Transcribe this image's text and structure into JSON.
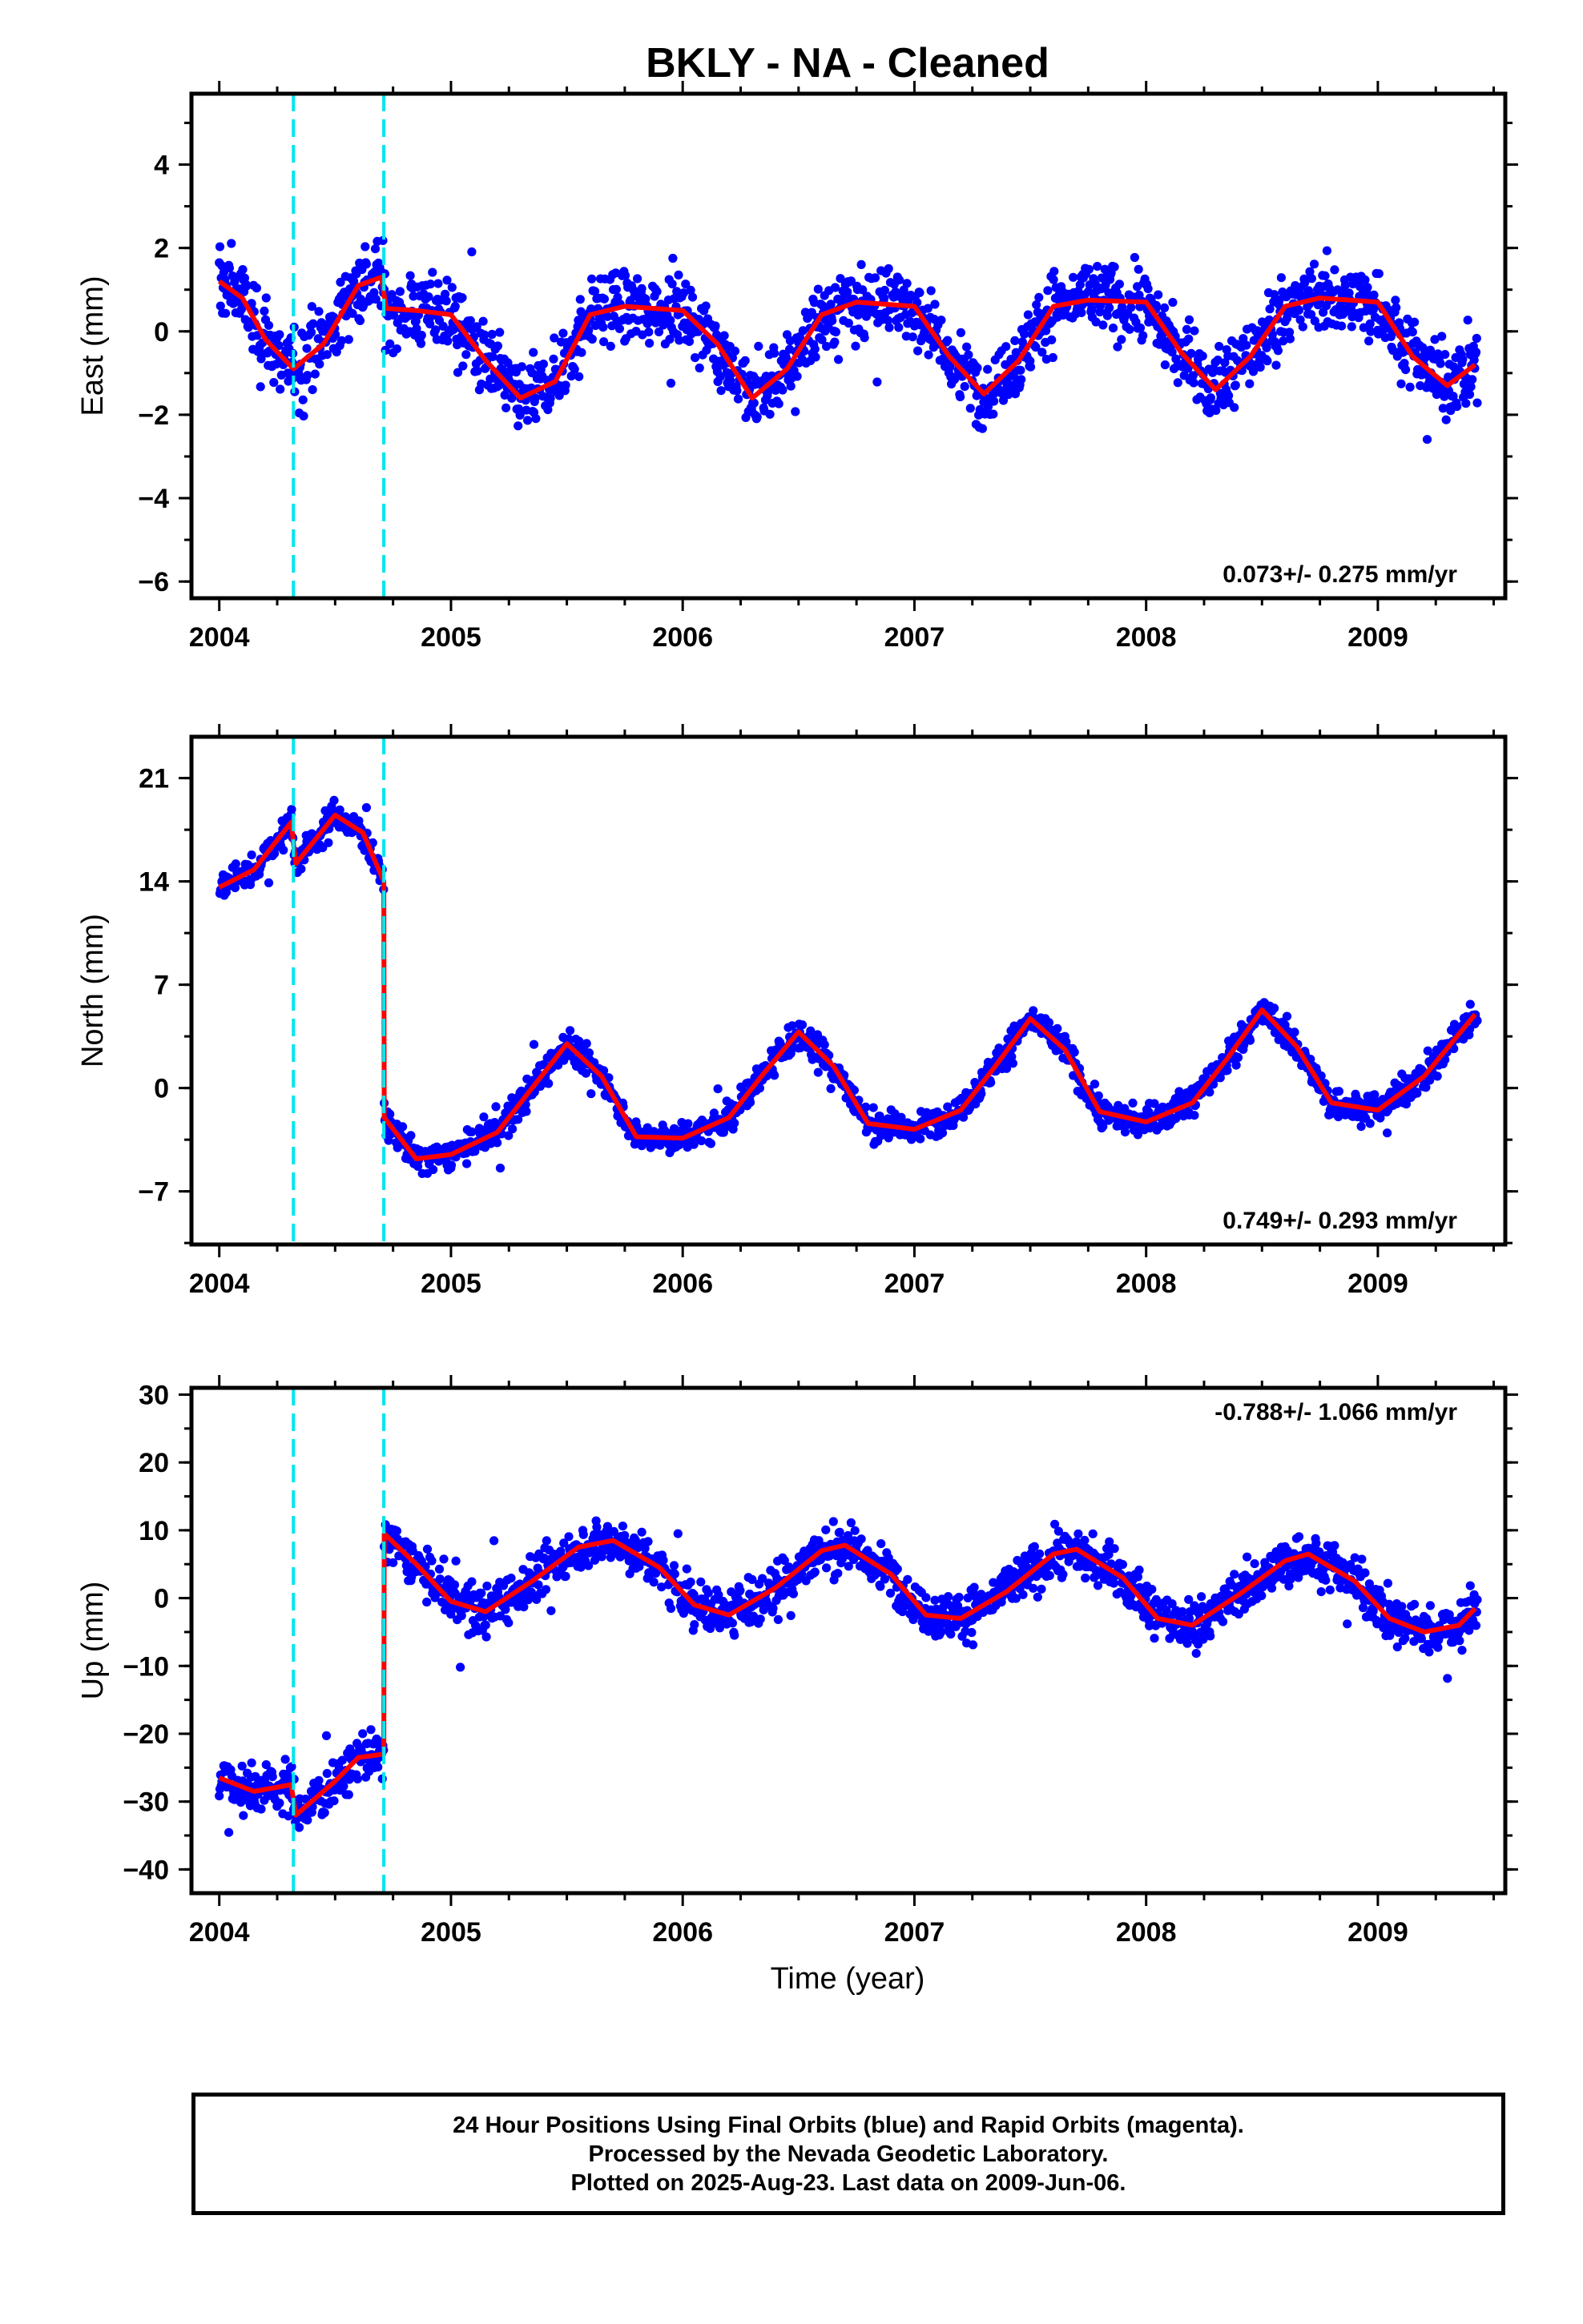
{
  "title": "BKLY  - NA - Cleaned",
  "footer": {
    "line1": "24 Hour Positions Using Final Orbits (blue) and Rapid Orbits (magenta).",
    "line2": "Processed by the Nevada Geodetic Laboratory.",
    "line3": "Plotted on 2025-Aug-23. Last data on 2009-Jun-06."
  },
  "colors": {
    "points": "#0000ff",
    "fit": "#ff0000",
    "steps": "#00e5ee",
    "frame": "#000000"
  },
  "xlabel": "Time (year)",
  "chart_data": [
    {
      "type": "scatter",
      "name": "east",
      "ylabel": "East (mm)",
      "rate_text": "0.073+/- 0.275 mm/yr",
      "xlim": [
        2003.88,
        2009.55
      ],
      "ylim": [
        -6.4,
        5.7
      ],
      "xticks": [
        2004,
        2005,
        2006,
        2007,
        2008,
        2009
      ],
      "yticks": [
        -6,
        -4,
        -2,
        0,
        2,
        4
      ],
      "step_lines_x": [
        2004.32,
        2004.71
      ],
      "fit_line": [
        [
          2004.0,
          1.2
        ],
        [
          2004.1,
          0.8
        ],
        [
          2004.2,
          -0.2
        ],
        [
          2004.32,
          -0.9
        ],
        [
          2004.45,
          -0.3
        ],
        [
          2004.6,
          1.1
        ],
        [
          2004.7,
          1.3
        ],
        [
          2004.72,
          0.55
        ],
        [
          2004.85,
          0.5
        ],
        [
          2005.0,
          0.4
        ],
        [
          2005.15,
          -0.7
        ],
        [
          2005.3,
          -1.6
        ],
        [
          2005.45,
          -1.2
        ],
        [
          2005.6,
          0.4
        ],
        [
          2005.75,
          0.6
        ],
        [
          2006.0,
          0.5
        ],
        [
          2006.15,
          -0.3
        ],
        [
          2006.3,
          -1.6
        ],
        [
          2006.45,
          -0.9
        ],
        [
          2006.6,
          0.4
        ],
        [
          2006.75,
          0.7
        ],
        [
          2007.0,
          0.6
        ],
        [
          2007.15,
          -0.6
        ],
        [
          2007.3,
          -1.5
        ],
        [
          2007.45,
          -0.7
        ],
        [
          2007.6,
          0.6
        ],
        [
          2007.75,
          0.75
        ],
        [
          2008.0,
          0.7
        ],
        [
          2008.15,
          -0.5
        ],
        [
          2008.3,
          -1.4
        ],
        [
          2008.45,
          -0.6
        ],
        [
          2008.6,
          0.6
        ],
        [
          2008.75,
          0.8
        ],
        [
          2009.0,
          0.7
        ],
        [
          2009.15,
          -0.6
        ],
        [
          2009.3,
          -1.3
        ],
        [
          2009.42,
          -0.8
        ]
      ],
      "season": {
        "amp": 1.1,
        "peak": 0.75,
        "offset": -0.1,
        "noise": 1.1
      }
    },
    {
      "type": "scatter",
      "name": "north",
      "ylabel": "North (mm)",
      "rate_text": "0.749+/- 0.293 mm/yr",
      "xlim": [
        2003.88,
        2009.55
      ],
      "ylim": [
        -10.6,
        23.8
      ],
      "xticks": [
        2004,
        2005,
        2006,
        2007,
        2008,
        2009
      ],
      "yticks": [
        -7,
        0,
        7,
        14,
        21
      ],
      "step_lines_x": [
        2004.32,
        2004.71
      ],
      "fit_line": [
        [
          2004.0,
          13.6
        ],
        [
          2004.15,
          14.8
        ],
        [
          2004.31,
          18.0
        ],
        [
          2004.33,
          15.2
        ],
        [
          2004.5,
          18.5
        ],
        [
          2004.62,
          17.3
        ],
        [
          2004.71,
          14.0
        ],
        [
          2004.712,
          -2.0
        ],
        [
          2004.85,
          -4.8
        ],
        [
          2005.0,
          -4.5
        ],
        [
          2005.2,
          -3.0
        ],
        [
          2005.35,
          0.0
        ],
        [
          2005.5,
          3.0
        ],
        [
          2005.65,
          0.8
        ],
        [
          2005.8,
          -3.3
        ],
        [
          2006.0,
          -3.4
        ],
        [
          2006.2,
          -2.0
        ],
        [
          2006.35,
          1.0
        ],
        [
          2006.5,
          3.8
        ],
        [
          2006.65,
          1.5
        ],
        [
          2006.8,
          -2.4
        ],
        [
          2007.0,
          -2.8
        ],
        [
          2007.2,
          -1.5
        ],
        [
          2007.35,
          1.5
        ],
        [
          2007.5,
          4.7
        ],
        [
          2007.65,
          2.6
        ],
        [
          2007.8,
          -1.6
        ],
        [
          2008.0,
          -2.3
        ],
        [
          2008.2,
          -1.0
        ],
        [
          2008.35,
          2.0
        ],
        [
          2008.5,
          5.3
        ],
        [
          2008.65,
          2.8
        ],
        [
          2008.8,
          -1.0
        ],
        [
          2009.0,
          -1.5
        ],
        [
          2009.2,
          0.8
        ],
        [
          2009.42,
          5.0
        ]
      ],
      "season": {
        "amp": 4.2,
        "peak": 0.5,
        "offset": 0.0,
        "noise": 1.3
      }
    },
    {
      "type": "scatter",
      "name": "up",
      "ylabel": "Up (mm)",
      "rate_text": "-0.788+/- 1.066 mm/yr",
      "xlim": [
        2003.88,
        2009.55
      ],
      "ylim": [
        -43.5,
        31.0
      ],
      "xticks": [
        2004,
        2005,
        2006,
        2007,
        2008,
        2009
      ],
      "yticks": [
        -40,
        -30,
        -20,
        -10,
        0,
        10,
        20,
        30
      ],
      "step_lines_x": [
        2004.32,
        2004.71
      ],
      "fit_line": [
        [
          2004.0,
          -26.5
        ],
        [
          2004.15,
          -28.5
        ],
        [
          2004.31,
          -27.5
        ],
        [
          2004.33,
          -32.0
        ],
        [
          2004.5,
          -27.0
        ],
        [
          2004.6,
          -23.5
        ],
        [
          2004.71,
          -23.0
        ],
        [
          2004.712,
          9.5
        ],
        [
          2004.85,
          5.0
        ],
        [
          2005.0,
          -0.5
        ],
        [
          2005.15,
          -2.0
        ],
        [
          2005.35,
          2.5
        ],
        [
          2005.55,
          7.5
        ],
        [
          2005.7,
          8.5
        ],
        [
          2005.9,
          4.5
        ],
        [
          2006.05,
          -1.0
        ],
        [
          2006.2,
          -2.5
        ],
        [
          2006.4,
          1.5
        ],
        [
          2006.6,
          7.0
        ],
        [
          2006.7,
          7.8
        ],
        [
          2006.9,
          3.5
        ],
        [
          2007.05,
          -2.5
        ],
        [
          2007.2,
          -3.0
        ],
        [
          2007.4,
          1.0
        ],
        [
          2007.6,
          6.5
        ],
        [
          2007.7,
          7.2
        ],
        [
          2007.9,
          3.0
        ],
        [
          2008.05,
          -3.0
        ],
        [
          2008.2,
          -4.0
        ],
        [
          2008.4,
          0.5
        ],
        [
          2008.6,
          5.5
        ],
        [
          2008.7,
          6.5
        ],
        [
          2008.9,
          2.5
        ],
        [
          2009.05,
          -3.0
        ],
        [
          2009.2,
          -5.0
        ],
        [
          2009.35,
          -4.0
        ],
        [
          2009.42,
          -1.5
        ]
      ],
      "season": {
        "amp": 5.0,
        "peak": 0.68,
        "offset": 2.5,
        "noise": 4.5
      }
    }
  ]
}
